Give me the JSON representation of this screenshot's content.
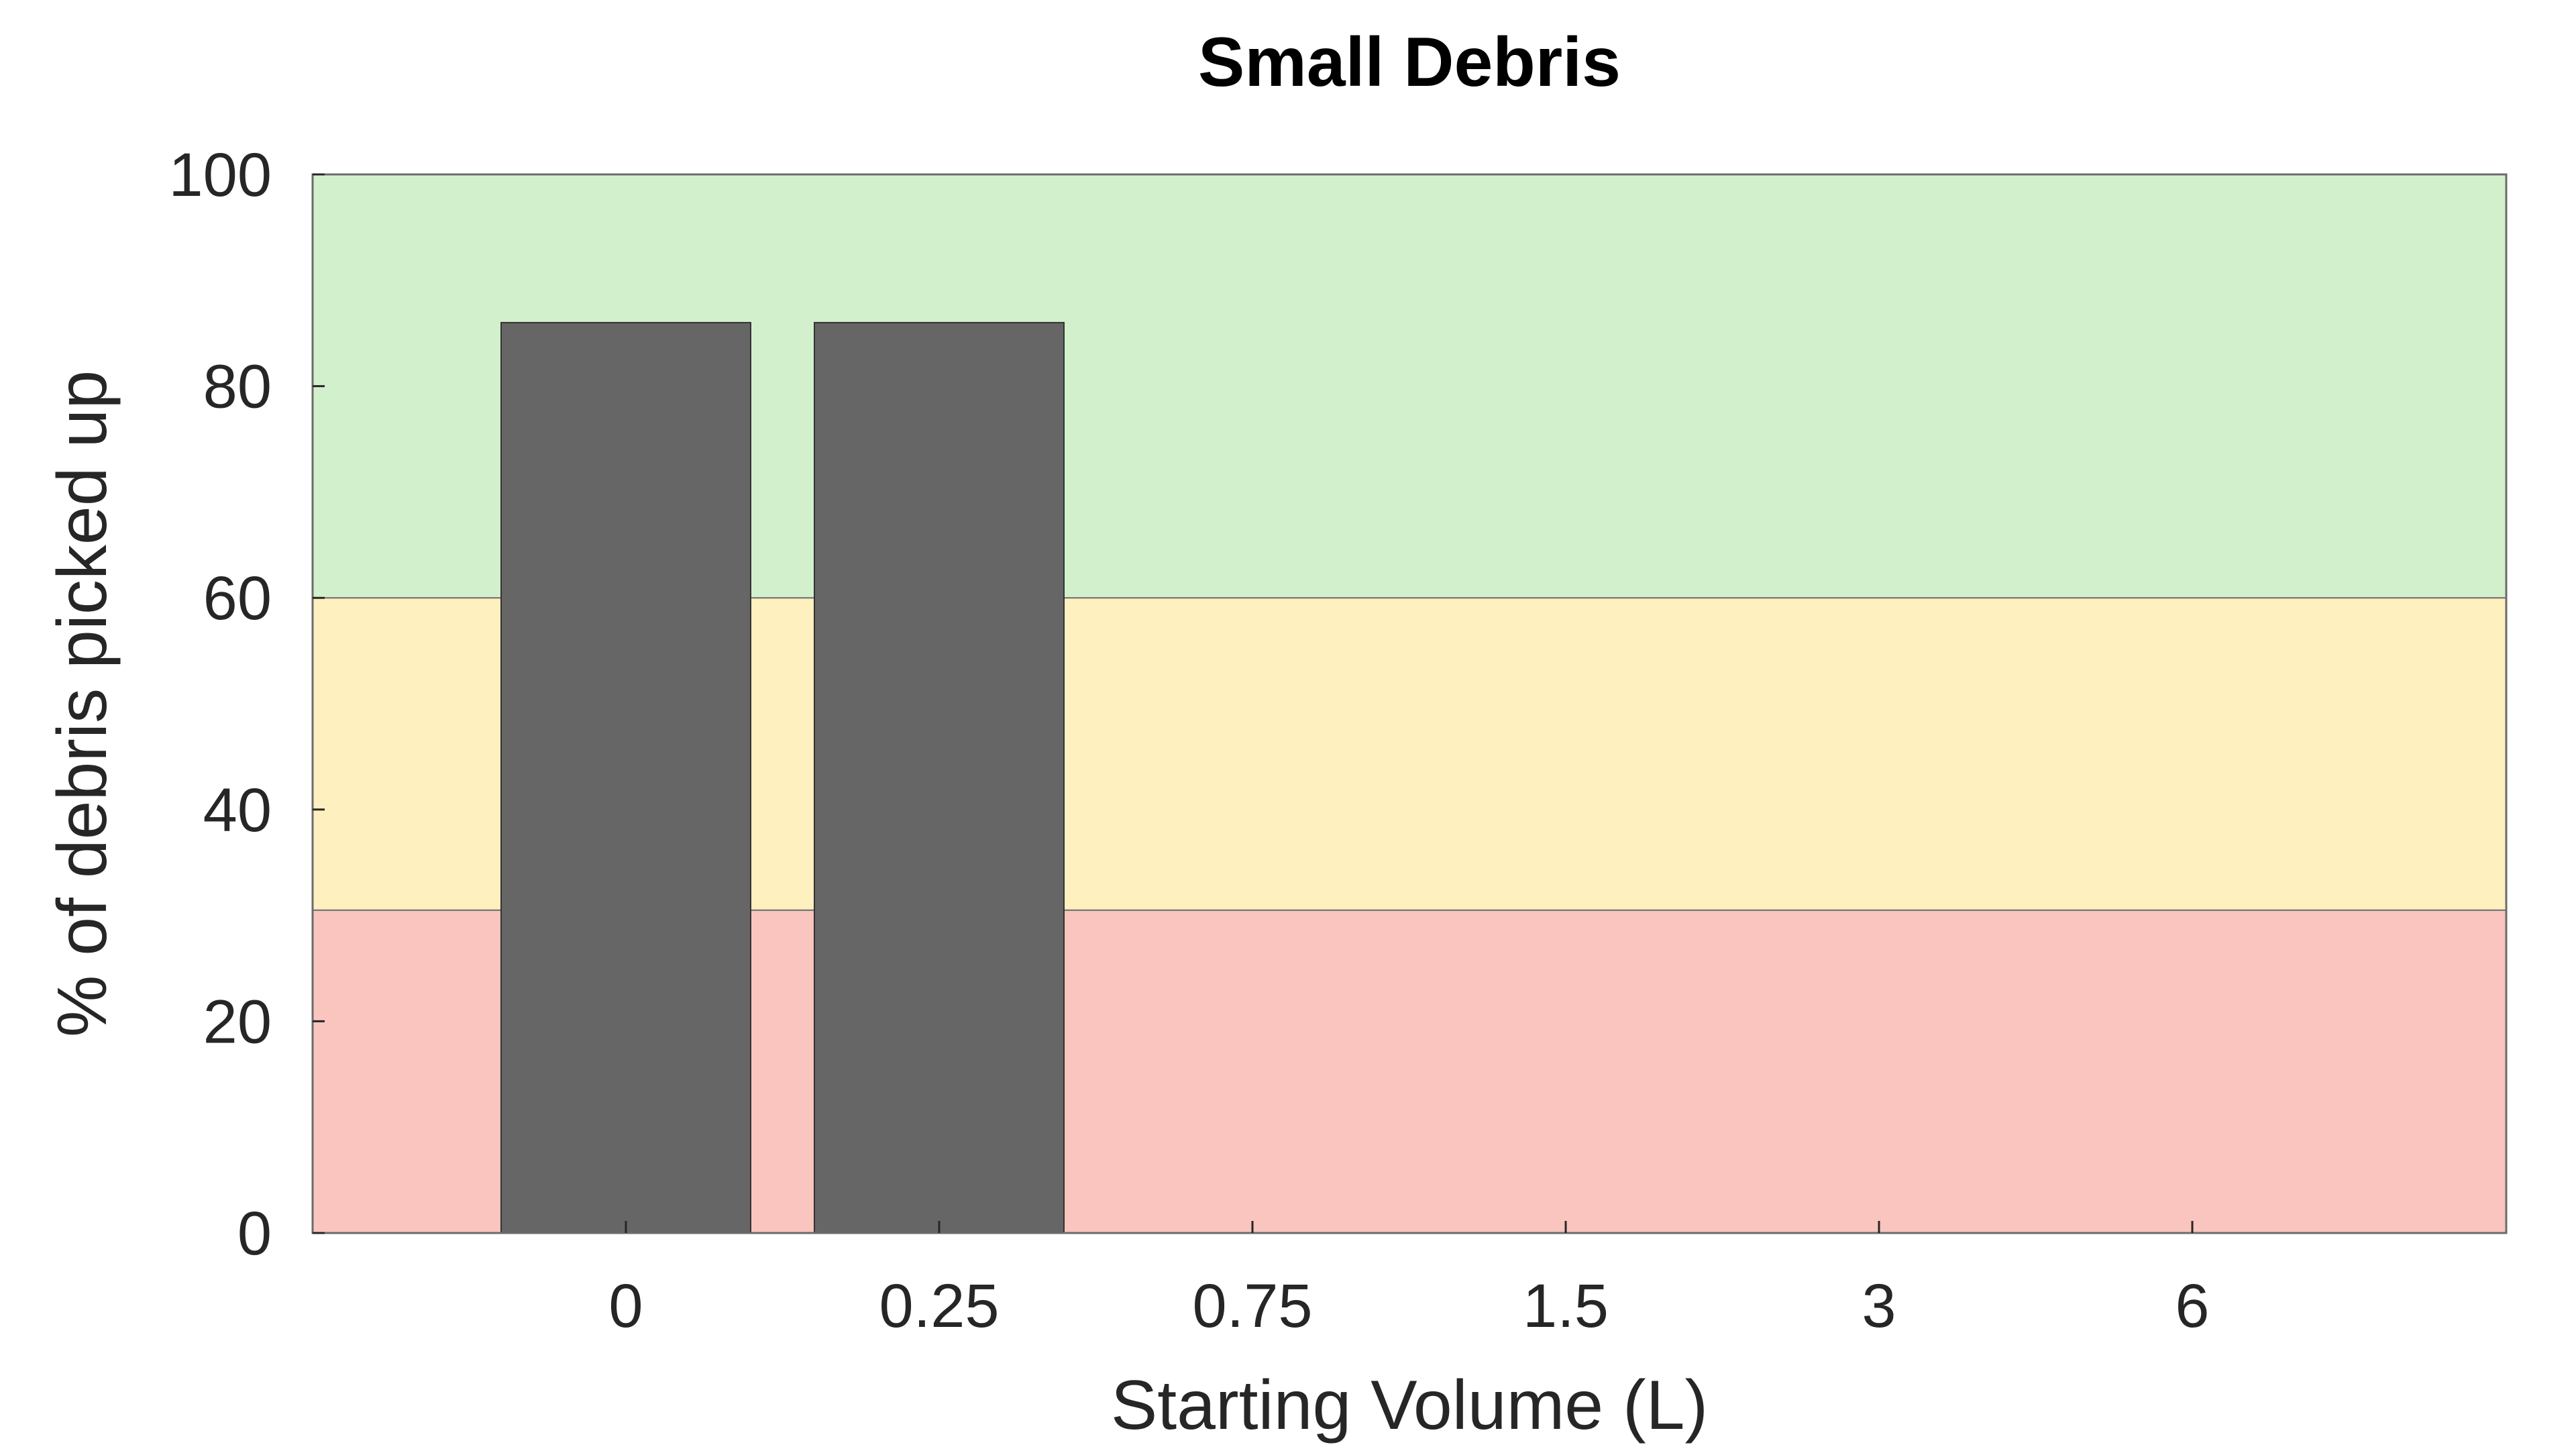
{
  "chart_data": {
    "type": "bar",
    "title": "Small Debris",
    "xlabel": "Starting Volume (L)",
    "ylabel": "% of debris picked up",
    "categories": [
      "0",
      "0.25",
      "0.75",
      "1.5",
      "3",
      "6"
    ],
    "values": [
      86,
      86,
      null,
      null,
      null,
      null
    ],
    "ylim": [
      0,
      100
    ],
    "yticks": [
      0,
      20,
      40,
      60,
      80,
      100
    ],
    "yticklabels": [
      "0",
      "20",
      "40",
      "60",
      "80",
      "100"
    ],
    "grid": false,
    "bar_color": "#666666",
    "bands": [
      {
        "from": 0,
        "to": 30.5,
        "color": "#f9c5be"
      },
      {
        "from": 30.5,
        "to": 60,
        "color": "#fff0bf"
      },
      {
        "from": 60,
        "to": 100,
        "color": "#d3f0cd"
      }
    ]
  }
}
